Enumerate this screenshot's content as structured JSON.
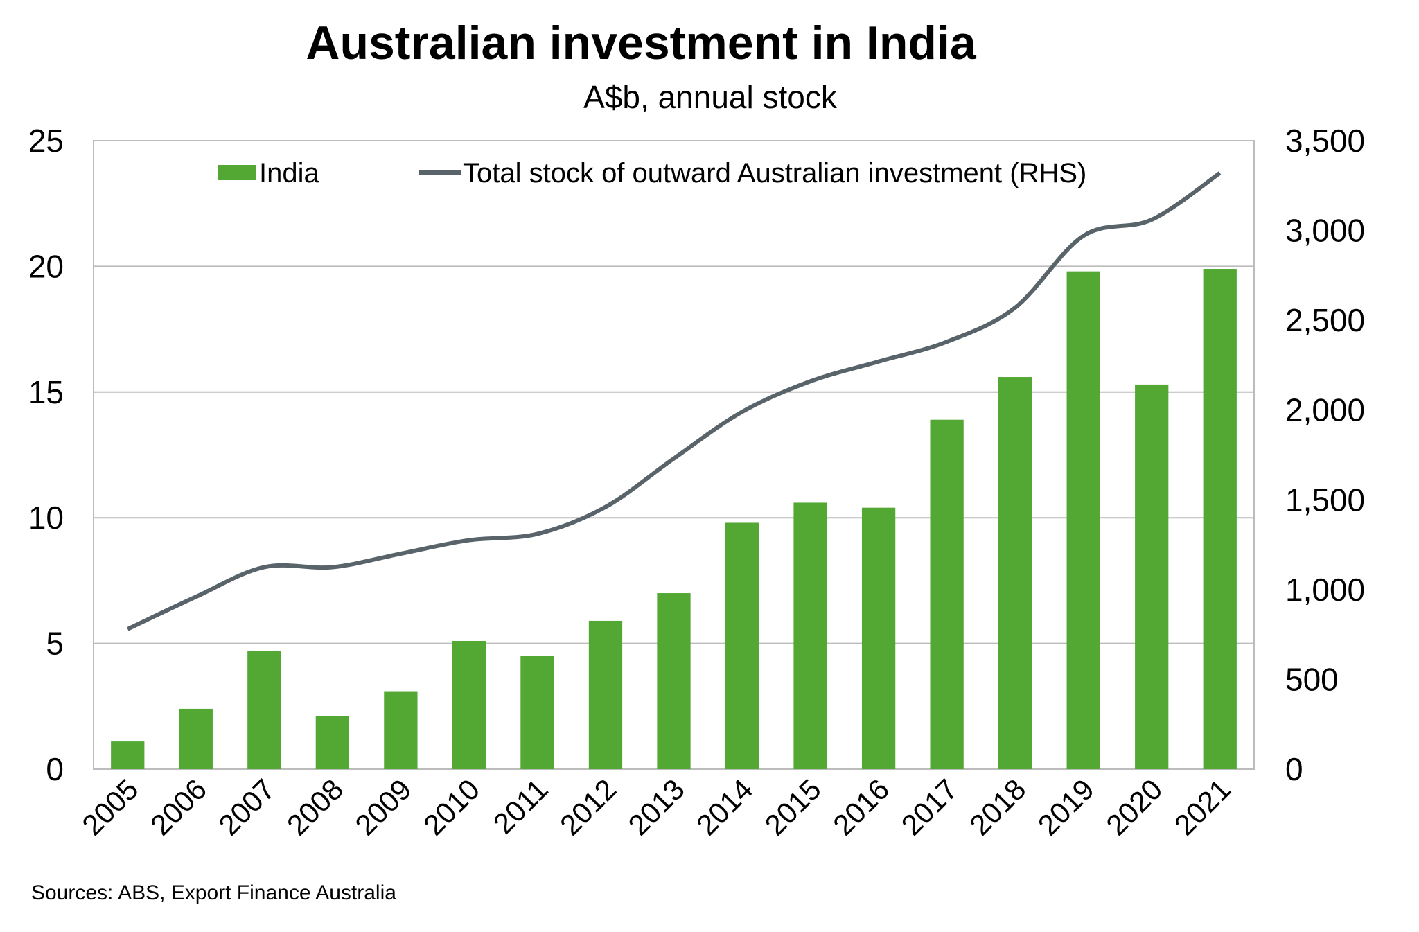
{
  "title": "Australian investment in India",
  "subtitle": "A$b, annual stock",
  "source": "Sources: ABS, Export Finance Australia",
  "colors": {
    "bar": "#52a833",
    "line": "#59636a",
    "grid": "#bcbcbc",
    "frame": "#bcbcbc"
  },
  "chart_data": {
    "type": "bar",
    "title": "Australian investment in India",
    "subtitle": "A$b, annual stock",
    "categories": [
      "2005",
      "2006",
      "2007",
      "2008",
      "2009",
      "2010",
      "2011",
      "2012",
      "2013",
      "2014",
      "2015",
      "2016",
      "2017",
      "2018",
      "2019",
      "2020",
      "2021"
    ],
    "y_left": {
      "ylim": [
        0,
        25
      ],
      "ticks": [
        0,
        5,
        10,
        15,
        20,
        25
      ],
      "tick_labels": [
        "0",
        "5",
        "10",
        "15",
        "20",
        "25"
      ]
    },
    "y_right": {
      "ylim": [
        0,
        3500
      ],
      "ticks": [
        0,
        500,
        1000,
        1500,
        2000,
        2500,
        3000,
        3500
      ],
      "tick_labels": [
        "0",
        "500",
        "1,000",
        "1,500",
        "2,000",
        "2,500",
        "3,000",
        "3,500"
      ]
    },
    "grid": true,
    "legend_position": "top",
    "series": [
      {
        "name": "India",
        "type": "bar",
        "axis": "left",
        "values": [
          1.1,
          2.4,
          4.7,
          2.1,
          3.1,
          5.1,
          4.5,
          5.9,
          7.0,
          9.8,
          10.6,
          10.4,
          13.9,
          15.6,
          19.8,
          15.3,
          19.9
        ]
      },
      {
        "name": "Total stock of outward Australian investment (RHS)",
        "type": "line",
        "axis": "right",
        "values": [
          780,
          960,
          1125,
          1125,
          1200,
          1275,
          1310,
          1460,
          1730,
          1990,
          2160,
          2270,
          2380,
          2570,
          2970,
          3060,
          3320
        ]
      }
    ]
  }
}
